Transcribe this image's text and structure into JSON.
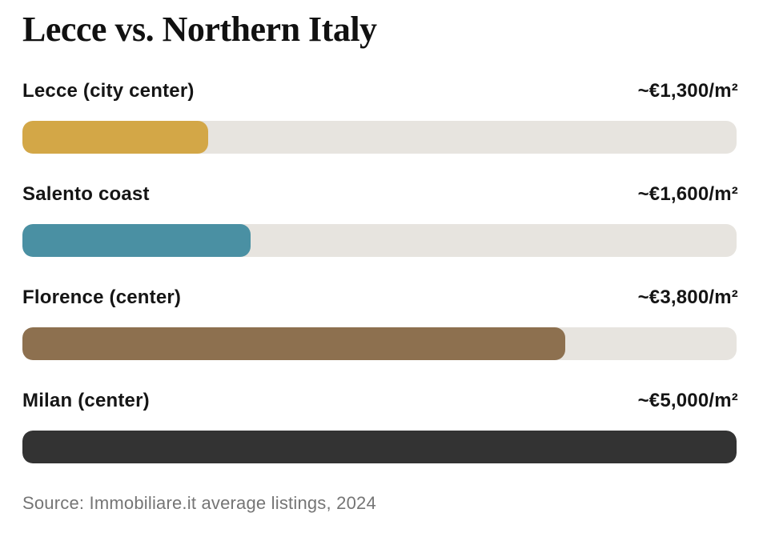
{
  "title": "Lecce vs. Northern Italy",
  "source": "Source: Immobiliare.it average listings, 2024",
  "colors": {
    "background": "#ffffff",
    "track": "#e7e4df",
    "title_text": "#111111",
    "label_text": "#151515",
    "source_text": "#757575"
  },
  "chart_data": {
    "type": "bar",
    "orientation": "horizontal",
    "title": "Lecce vs. Northern Italy",
    "categories": [
      "Lecce (city center)",
      "Salento coast",
      "Florence (center)",
      "Milan (center)"
    ],
    "values": [
      1300,
      1600,
      3800,
      5000
    ],
    "value_labels": [
      "~€1,300/m²",
      "~€1,600/m²",
      "~€3,800/m²",
      "~€5,000/m²"
    ],
    "bar_colors": [
      "#d3a747",
      "#4a90a3",
      "#8d704f",
      "#333333"
    ],
    "unit": "€/m²",
    "xlim": [
      0,
      5000
    ],
    "grid": false,
    "legend": "none",
    "source": "Source: Immobiliare.it average listings, 2024"
  }
}
